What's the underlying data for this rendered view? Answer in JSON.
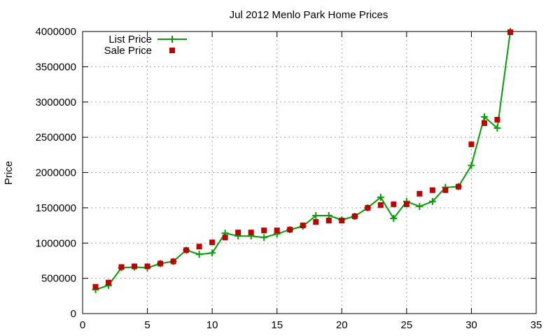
{
  "chart_data": {
    "type": "line",
    "title": "Jul 2012 Menlo Park Home Prices",
    "xlabel": "",
    "ylabel": "Price",
    "xlim": [
      0,
      35
    ],
    "ylim": [
      0,
      4000000
    ],
    "x_ticks": [
      0,
      5,
      10,
      15,
      20,
      25,
      30,
      35
    ],
    "y_ticks": [
      0,
      500000,
      1000000,
      1500000,
      2000000,
      2500000,
      3000000,
      3500000,
      4000000
    ],
    "x_tick_labels": [
      "0",
      "5",
      "10",
      "15",
      "20",
      "25",
      "30",
      "35"
    ],
    "y_tick_labels": [
      "0",
      "500000",
      "1000000",
      "1500000",
      "2000000",
      "2500000",
      "3000000",
      "3500000",
      "4000000"
    ],
    "grid": true,
    "legend_position": "top-left",
    "x": [
      1,
      2,
      3,
      4,
      5,
      6,
      7,
      8,
      9,
      10,
      11,
      12,
      13,
      14,
      15,
      16,
      17,
      18,
      19,
      20,
      21,
      22,
      23,
      24,
      25,
      26,
      27,
      28,
      29,
      30,
      31,
      32,
      33
    ],
    "series": [
      {
        "name": "List Price",
        "style": "line+plus",
        "color": "#00a000",
        "values": [
          340000,
          400000,
          650000,
          660000,
          650000,
          710000,
          740000,
          900000,
          840000,
          860000,
          1140000,
          1100000,
          1100000,
          1080000,
          1130000,
          1190000,
          1240000,
          1390000,
          1390000,
          1330000,
          1380000,
          1500000,
          1650000,
          1350000,
          1590000,
          1520000,
          1590000,
          1790000,
          1800000,
          2100000,
          2790000,
          2630000,
          4000000
        ]
      },
      {
        "name": "Sale Price",
        "style": "square-markers",
        "color": "#c00000",
        "values": [
          380000,
          440000,
          660000,
          670000,
          670000,
          710000,
          740000,
          900000,
          950000,
          1010000,
          1080000,
          1150000,
          1150000,
          1180000,
          1180000,
          1190000,
          1250000,
          1300000,
          1320000,
          1320000,
          1380000,
          1500000,
          1540000,
          1550000,
          1550000,
          1700000,
          1750000,
          1750000,
          1800000,
          2400000,
          2700000,
          2750000,
          3990000
        ]
      }
    ]
  }
}
